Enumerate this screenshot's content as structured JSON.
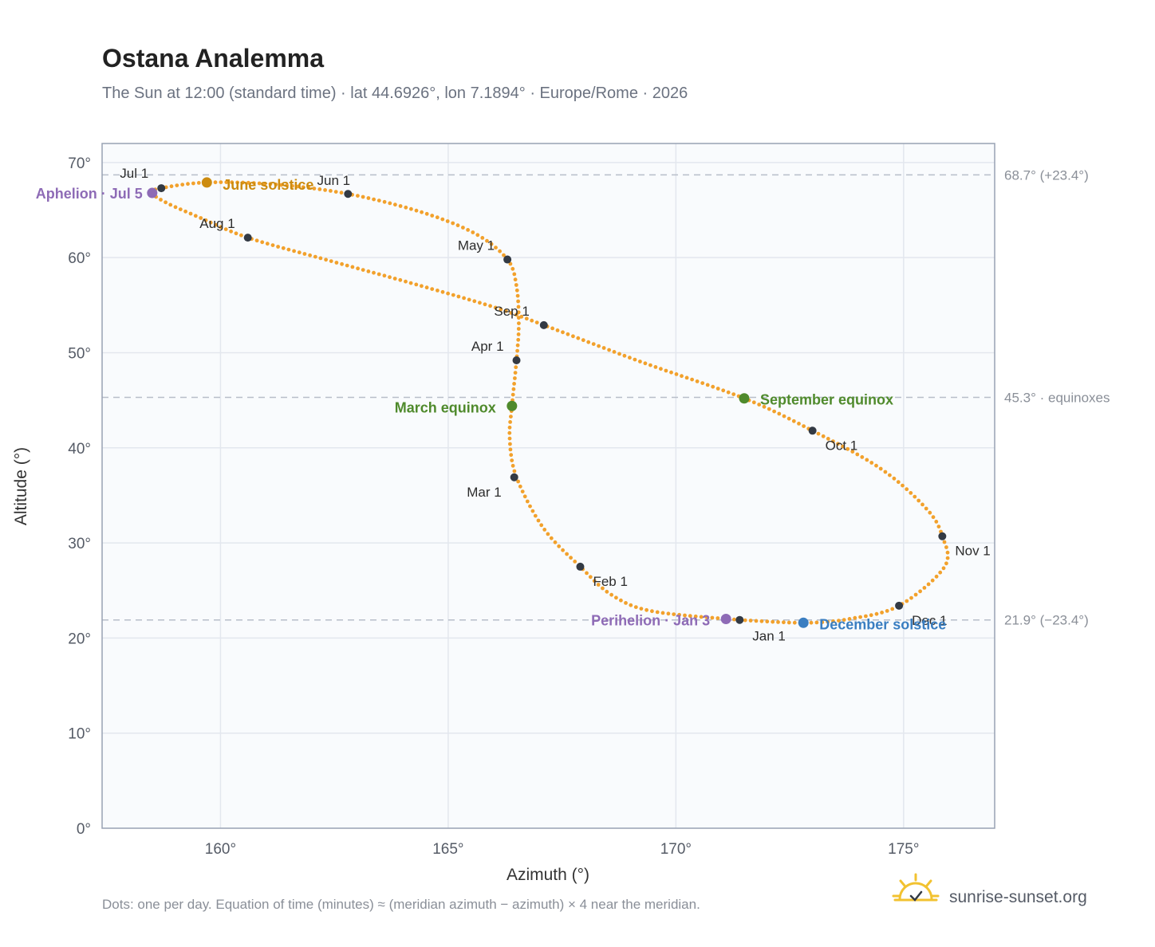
{
  "chart_data": {
    "type": "scatter",
    "title": "Ostana Analemma",
    "subtitle": "The Sun at 12:00 (standard time) · lat 44.6926°, lon 7.1894° · Europe/Rome · 2026",
    "xlabel": "Azimuth (°)",
    "ylabel": "Altitude (°)",
    "xlim": [
      157.4,
      177.0
    ],
    "ylim": [
      0,
      72
    ],
    "x_ticks": [
      {
        "value": 160,
        "label": "160°"
      },
      {
        "value": 165,
        "label": "165°"
      },
      {
        "value": 170,
        "label": "170°"
      },
      {
        "value": 175,
        "label": "175°"
      }
    ],
    "y_ticks": [
      {
        "value": 0,
        "label": "0°"
      },
      {
        "value": 10,
        "label": "10°"
      },
      {
        "value": 20,
        "label": "20°"
      },
      {
        "value": 30,
        "label": "30°"
      },
      {
        "value": 40,
        "label": "40°"
      },
      {
        "value": 50,
        "label": "50°"
      },
      {
        "value": 60,
        "label": "60°"
      },
      {
        "value": 70,
        "label": "70°"
      }
    ],
    "grid": true,
    "reference_lines": [
      {
        "y": 68.7,
        "label": "68.7° (+23.4°)"
      },
      {
        "y": 45.3,
        "label": "45.3° · equinoxes"
      },
      {
        "y": 21.9,
        "label": "21.9° (−23.4°)"
      }
    ],
    "daily_series_anchors": [
      {
        "azimuth": 171.4,
        "altitude": 21.9
      },
      {
        "azimuth": 169.5,
        "altitude": 22.8
      },
      {
        "azimuth": 168.6,
        "altitude": 24.5
      },
      {
        "azimuth": 167.9,
        "altitude": 27.5
      },
      {
        "azimuth": 167.1,
        "altitude": 31.5
      },
      {
        "azimuth": 166.5,
        "altitude": 36.9
      },
      {
        "azimuth": 166.35,
        "altitude": 41.0
      },
      {
        "azimuth": 166.4,
        "altitude": 44.4
      },
      {
        "azimuth": 166.5,
        "altitude": 49.2
      },
      {
        "azimuth": 166.55,
        "altitude": 53.0
      },
      {
        "azimuth": 166.5,
        "altitude": 57.0
      },
      {
        "azimuth": 166.3,
        "altitude": 59.8
      },
      {
        "azimuth": 165.6,
        "altitude": 62.5
      },
      {
        "azimuth": 164.4,
        "altitude": 64.8
      },
      {
        "azimuth": 162.8,
        "altitude": 66.7
      },
      {
        "azimuth": 161.2,
        "altitude": 67.7
      },
      {
        "azimuth": 159.7,
        "altitude": 67.9
      },
      {
        "azimuth": 158.7,
        "altitude": 67.3
      },
      {
        "azimuth": 158.5,
        "altitude": 66.8
      },
      {
        "azimuth": 158.8,
        "altitude": 65.8
      },
      {
        "azimuth": 159.5,
        "altitude": 64.3
      },
      {
        "azimuth": 160.6,
        "altitude": 62.1
      },
      {
        "azimuth": 162.3,
        "altitude": 59.8
      },
      {
        "azimuth": 164.2,
        "altitude": 57.3
      },
      {
        "azimuth": 166.0,
        "altitude": 54.8
      },
      {
        "azimuth": 167.1,
        "altitude": 52.9
      },
      {
        "azimuth": 169.2,
        "altitude": 49.1
      },
      {
        "azimuth": 171.5,
        "altitude": 45.2
      },
      {
        "azimuth": 173.0,
        "altitude": 41.8
      },
      {
        "azimuth": 174.5,
        "altitude": 37.8
      },
      {
        "azimuth": 175.5,
        "altitude": 33.6
      },
      {
        "azimuth": 175.85,
        "altitude": 30.7
      },
      {
        "azimuth": 175.9,
        "altitude": 27.5
      },
      {
        "azimuth": 174.9,
        "altitude": 23.4
      },
      {
        "azimuth": 173.8,
        "altitude": 22.0
      },
      {
        "azimuth": 172.8,
        "altitude": 21.6
      },
      {
        "azimuth": 171.4,
        "altitude": 21.9
      }
    ],
    "month_markers": [
      {
        "label": "Jan 1",
        "azimuth": 171.4,
        "altitude": 21.9,
        "anchor": "start",
        "dx": 16,
        "dy": 26
      },
      {
        "label": "Feb 1",
        "azimuth": 167.9,
        "altitude": 27.5,
        "anchor": "start",
        "dx": 16,
        "dy": 24
      },
      {
        "label": "Mar 1",
        "azimuth": 166.45,
        "altitude": 36.9,
        "anchor": "end",
        "dx": -16,
        "dy": 24
      },
      {
        "label": "Apr 1",
        "azimuth": 166.5,
        "altitude": 49.2,
        "anchor": "end",
        "dx": -16,
        "dy": -12
      },
      {
        "label": "May 1",
        "azimuth": 166.3,
        "altitude": 59.8,
        "anchor": "end",
        "dx": -16,
        "dy": -12
      },
      {
        "label": "Jun 1",
        "azimuth": 162.8,
        "altitude": 66.7,
        "anchor": "middle",
        "dx": -18,
        "dy": -11
      },
      {
        "label": "Jul 1",
        "azimuth": 158.7,
        "altitude": 67.3,
        "anchor": "end",
        "dx": -16,
        "dy": -13
      },
      {
        "label": "Aug 1",
        "azimuth": 160.6,
        "altitude": 62.1,
        "anchor": "end",
        "dx": -16,
        "dy": -12
      },
      {
        "label": "Sep 1",
        "azimuth": 167.1,
        "altitude": 52.9,
        "anchor": "end",
        "dx": -18,
        "dy": -12
      },
      {
        "label": "Oct 1",
        "azimuth": 173.0,
        "altitude": 41.8,
        "anchor": "start",
        "dx": 16,
        "dy": 24
      },
      {
        "label": "Nov 1",
        "azimuth": 175.85,
        "altitude": 30.7,
        "anchor": "start",
        "dx": 16,
        "dy": 24
      },
      {
        "label": "Dec 1",
        "azimuth": 174.9,
        "altitude": 23.4,
        "anchor": "start",
        "dx": 16,
        "dy": 24
      }
    ],
    "events": [
      {
        "label": "Aphelion · Jul 5",
        "azimuth": 158.5,
        "altitude": 66.8,
        "color": "#8e6bb6",
        "anchor": "end",
        "dx": -12,
        "dy": 7
      },
      {
        "label": "June solstice",
        "azimuth": 159.7,
        "altitude": 67.9,
        "color": "#cc8b0f",
        "anchor": "start",
        "dx": 20,
        "dy": 9
      },
      {
        "label": "March equinox",
        "azimuth": 166.4,
        "altitude": 44.4,
        "color": "#4f8a2c",
        "anchor": "end",
        "dx": -20,
        "dy": 8
      },
      {
        "label": "September equinox",
        "azimuth": 171.5,
        "altitude": 45.2,
        "color": "#4f8a2c",
        "anchor": "start",
        "dx": 20,
        "dy": 8
      },
      {
        "label": "Perihelion · Jan 3",
        "azimuth": 171.1,
        "altitude": 22.0,
        "color": "#8e6bb6",
        "anchor": "end",
        "dx": -20,
        "dy": 8
      },
      {
        "label": "December solstice",
        "azimuth": 172.8,
        "altitude": 21.6,
        "color": "#3a7ec1",
        "anchor": "start",
        "dx": 20,
        "dy": 8
      }
    ],
    "colors": {
      "daily_dots": "#f2a12c",
      "month_marker": "#333a44",
      "plot_background": "#f9fbfd",
      "grid": "#e3e7ee",
      "frame": "#98a2b3",
      "reference_line": "#b8bec9"
    },
    "footnote": "Dots: one per day. Equation of time (minutes) ≈ (meridian azimuth − azimuth) × 4 near the meridian.",
    "brand": {
      "name": "sunrise-sunset.org",
      "icon": "sun-icon"
    }
  }
}
